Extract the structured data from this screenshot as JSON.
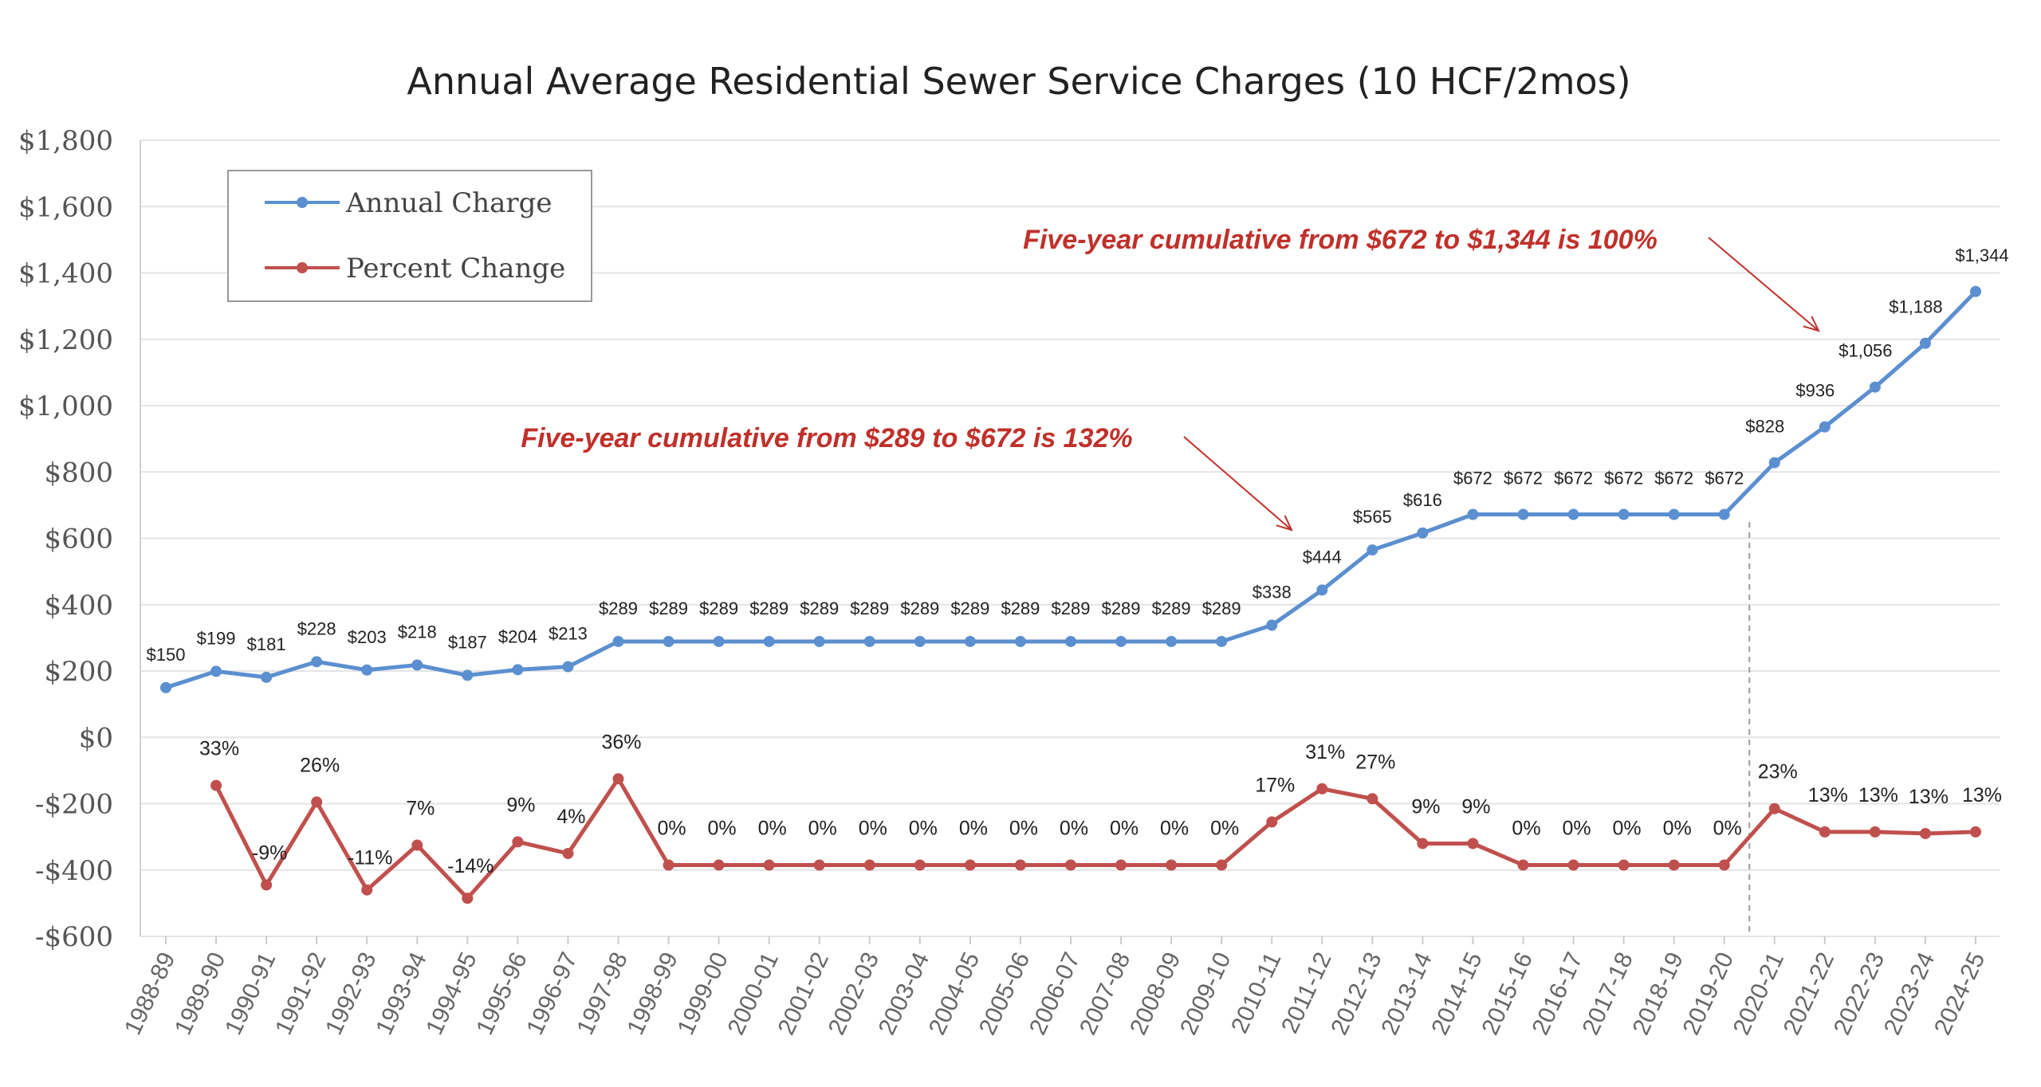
{
  "chart_data": {
    "type": "line",
    "title": "Annual Average Residential Sewer Service Charges (10 HCF/2mos)",
    "categories": [
      "1988-89",
      "1989-90",
      "1990-91",
      "1991-92",
      "1992-93",
      "1993-94",
      "1994-95",
      "1995-96",
      "1996-97",
      "1997-98",
      "1998-99",
      "1999-00",
      "2000-01",
      "2001-02",
      "2002-03",
      "2003-04",
      "2004-05",
      "2005-06",
      "2006-07",
      "2007-08",
      "2008-09",
      "2009-10",
      "2010-11",
      "2011-12",
      "2012-13",
      "2013-14",
      "2014-15",
      "2015-16",
      "2016-17",
      "2017-18",
      "2018-19",
      "2019-20",
      "2020-21",
      "2021-22",
      "2022-23",
      "2023-24",
      "2024-25"
    ],
    "ylim": [
      -600,
      1800
    ],
    "yticks": [
      1800,
      1600,
      1400,
      1200,
      1000,
      800,
      600,
      400,
      200,
      0,
      -200,
      -400,
      -600
    ],
    "ytick_labels": [
      "$1,800",
      "$1,600",
      "$1,400",
      "$1,200",
      "$1,000",
      "$800",
      "$600",
      "$400",
      "$200",
      "$0",
      "-$200",
      "-$400",
      "-$600"
    ],
    "grid": true,
    "legend_position": "top-left",
    "series": [
      {
        "name": "Annual Charge",
        "color": "#5b8fd0",
        "values": [
          150,
          199,
          181,
          228,
          203,
          218,
          187,
          204,
          213,
          289,
          289,
          289,
          289,
          289,
          289,
          289,
          289,
          289,
          289,
          289,
          289,
          289,
          338,
          444,
          565,
          616,
          672,
          672,
          672,
          672,
          672,
          672,
          828,
          936,
          1056,
          1188,
          1344
        ],
        "labels": [
          "$150",
          "$199",
          "$181",
          "$228",
          "$203",
          "$218",
          "$187",
          "$204",
          "$213",
          "$289",
          "$289",
          "$289",
          "$289",
          "$289",
          "$289",
          "$289",
          "$289",
          "$289",
          "$289",
          "$289",
          "$289",
          "$289",
          "$338",
          "$444",
          "$565",
          "$616",
          "$672",
          "$672",
          "$672",
          "$672",
          "$672",
          "$672",
          "$828",
          "$936",
          "$1,056",
          "$1,188",
          "$1,344"
        ]
      },
      {
        "name": "Percent Change",
        "color": "#c0504d",
        "values": [
          null,
          -145,
          -445,
          -195,
          -460,
          -325,
          -485,
          -315,
          -350,
          -125,
          -385,
          -385,
          -385,
          -385,
          -385,
          -385,
          -385,
          -385,
          -385,
          -385,
          -385,
          -385,
          -255,
          -155,
          -185,
          -320,
          -320,
          -385,
          -385,
          -385,
          -385,
          -385,
          -215,
          -285,
          -285,
          -290,
          -285
        ],
        "labels": [
          "",
          "33%",
          "-9%",
          "26%",
          "-11%",
          "7%",
          "-14%",
          "9%",
          "4%",
          "36%",
          "0%",
          "0%",
          "0%",
          "0%",
          "0%",
          "0%",
          "0%",
          "0%",
          "0%",
          "0%",
          "0%",
          "0%",
          "17%",
          "31%",
          "27%",
          "9%",
          "9%",
          "0%",
          "0%",
          "0%",
          "0%",
          "0%",
          "23%",
          "13%",
          "13%",
          "13%",
          "13%"
        ]
      }
    ],
    "annotations": [
      {
        "text": "Five-year cumulative from $289 to $672 is 132%",
        "arrow_to_category": "2010-11"
      },
      {
        "text": "Five-year cumulative from $672 to $1,344 is 100%",
        "arrow_to_category": "2021-22"
      }
    ],
    "vertical_marker_category": "2019-20"
  }
}
